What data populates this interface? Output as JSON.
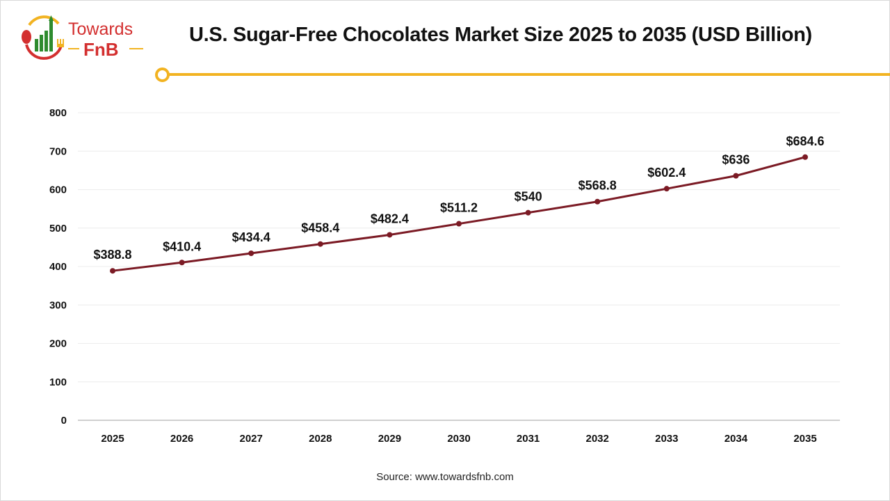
{
  "logo": {
    "line1": "Towards",
    "line2": "FnB"
  },
  "title": "U.S. Sugar-Free Chocolates Market Size 2025 to 2035 (USD Billion)",
  "source": "Source: www.towardsfnb.com",
  "colors": {
    "line": "#7b1a24",
    "accent": "#f2b321",
    "logo_red": "#d32f2f",
    "logo_green": "#2e8b2e"
  },
  "chart_data": {
    "type": "line",
    "title": "U.S. Sugar-Free Chocolates Market Size 2025 to 2035 (USD Billion)",
    "xlabel": "",
    "ylabel": "",
    "categories": [
      "2025",
      "2026",
      "2027",
      "2028",
      "2029",
      "2030",
      "2031",
      "2032",
      "2033",
      "2034",
      "2035"
    ],
    "values": [
      388.8,
      410.4,
      434.4,
      458.4,
      482.4,
      511.2,
      540,
      568.8,
      602.4,
      636,
      684.6
    ],
    "data_labels": [
      "$388.8",
      "$410.4",
      "$434.4",
      "$458.4",
      "$482.4",
      "$511.2",
      "$540",
      "$568.8",
      "$602.4",
      "$636",
      "$684.6"
    ],
    "ylim": [
      0,
      800
    ],
    "yticks": [
      0,
      100,
      200,
      300,
      400,
      500,
      600,
      700,
      800
    ],
    "grid": true,
    "legend": "none"
  }
}
